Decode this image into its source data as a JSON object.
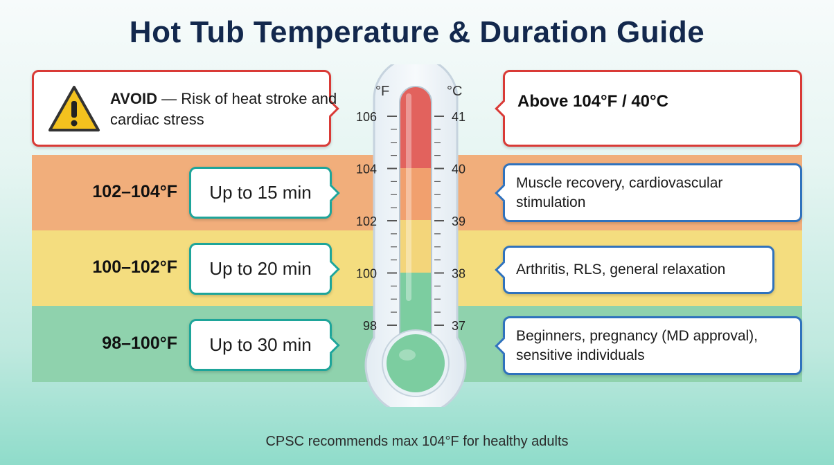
{
  "title": "Hot Tub Temperature & Duration Guide",
  "avoid": {
    "icon": "warning-icon",
    "bold": "AVOID",
    "text": " — Risk of heat stroke and cardiac stress",
    "limit": "Above 104°F / 40°C",
    "color": "#d93a36"
  },
  "thermometer": {
    "f_unit": "°F",
    "c_unit": "°C",
    "f_ticks": [
      "106",
      "104",
      "102",
      "100",
      "98"
    ],
    "c_ticks": [
      "41",
      "40",
      "39",
      "38",
      "37"
    ],
    "zone_colors": [
      "#e2625d",
      "#f1a06e",
      "#f3d57a",
      "#7ccda0"
    ]
  },
  "zones": [
    {
      "range": "102–104°F",
      "duration": "Up to 15 min",
      "benefits": "Muscle recovery, cardiovascular stimulation",
      "color": "#f1ae7b"
    },
    {
      "range": "100–102°F",
      "duration": "Up to 20 min",
      "benefits": "Arthritis, RLS, general relaxation",
      "color": "#f4dd7f"
    },
    {
      "range": "98–100°F",
      "duration": "Up to 30 min",
      "benefits": "Beginners, pregnancy (MD approval), sensitive individuals",
      "color": "#8fd2ad"
    }
  ],
  "footer": "CPSC recommends max 104°F for healthy adults"
}
